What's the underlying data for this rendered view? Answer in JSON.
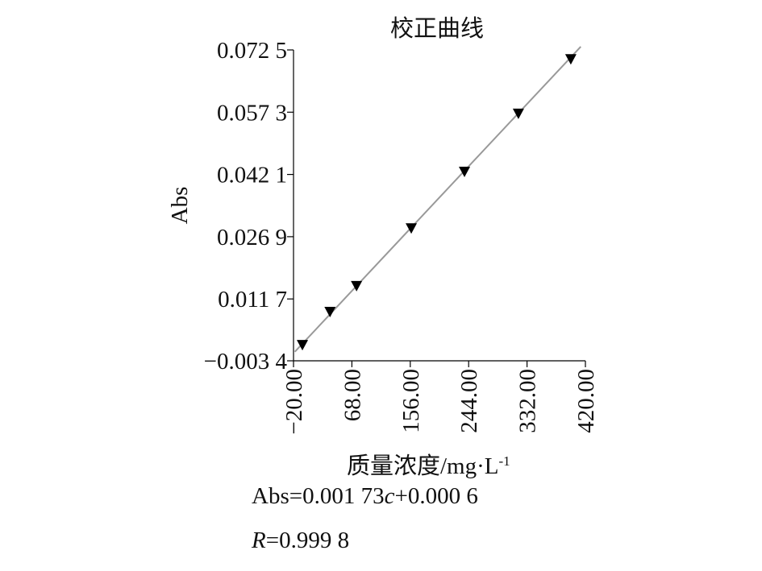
{
  "chart_data": {
    "type": "scatter",
    "title": "校正曲线",
    "x_label": "质量浓度/mg·L",
    "x_label_sup": "-1",
    "y_label": "Abs",
    "series": [
      {
        "name": null,
        "color": "#000000",
        "marker": "triangle-down",
        "x": [
          -6.6,
          35,
          75,
          157.5,
          237.7,
          319,
          398
        ],
        "values": [
          0.0005,
          0.0086,
          0.0149,
          0.029,
          0.0428,
          0.057,
          0.0703
        ]
      }
    ],
    "fit_line": {
      "color": "#999999",
      "x": [
        -18,
        413
      ],
      "y": [
        -0.0012,
        0.0733
      ]
    },
    "xlim": [
      -20,
      420
    ],
    "xticks": [
      {
        "value": -20,
        "label": "−20.00"
      },
      {
        "value": 68,
        "label": "68.00"
      },
      {
        "value": 156,
        "label": "156.00"
      },
      {
        "value": 244,
        "label": "244.00"
      },
      {
        "value": 332,
        "label": "332.00"
      },
      {
        "value": 420,
        "label": "420.00"
      }
    ],
    "ylim": [
      -0.0034,
      0.0725
    ],
    "yticks": [
      {
        "value": -0.0034,
        "label": "−0.003 4"
      },
      {
        "value": 0.0117,
        "label": "0.011 7"
      },
      {
        "value": 0.0269,
        "label": "0.026 9"
      },
      {
        "value": 0.0421,
        "label": "0.042 1"
      },
      {
        "value": 0.0573,
        "label": "0.057 3"
      },
      {
        "value": 0.0725,
        "label": "0.072 5"
      }
    ],
    "grid": false,
    "annotations": [
      [
        "Abs=0.001 73",
        "c",
        "+0.000 6"
      ],
      [
        "R",
        "=0.999 8"
      ]
    ]
  }
}
